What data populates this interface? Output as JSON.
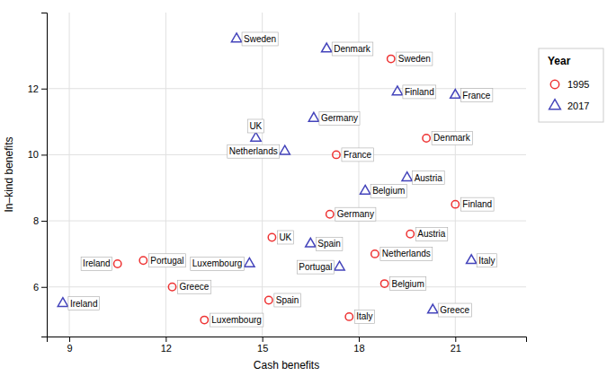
{
  "chart_data": {
    "type": "scatter",
    "xlabel": "Cash benefits",
    "ylabel": "In–kind benefits",
    "xlim": [
      8.3,
      23.2
    ],
    "ylim": [
      4.5,
      14.3
    ],
    "xticks": [
      9,
      12,
      15,
      18,
      21
    ],
    "yticks": [
      6,
      8,
      10,
      12
    ],
    "grid": true,
    "legend": "right",
    "legend_title": "Year",
    "series": [
      {
        "name": "1995",
        "color": "#EE3333",
        "marker": "circle",
        "labels": [
          "Sweden",
          "Denmark",
          "Finland",
          "France",
          "Germany",
          "Austria",
          "Netherlands",
          "Belgium",
          "UK",
          "Ireland",
          "Portugal",
          "Spain",
          "Greece",
          "Luxembourg",
          "Italy"
        ],
        "x": [
          19.0,
          20.1,
          21.0,
          17.3,
          17.1,
          19.6,
          18.5,
          18.8,
          15.3,
          10.5,
          11.3,
          15.2,
          12.2,
          13.2,
          17.7
        ],
        "values": [
          12.9,
          10.5,
          8.5,
          10.0,
          8.2,
          7.6,
          7.0,
          6.1,
          7.5,
          6.7,
          6.8,
          5.6,
          6.0,
          5.0,
          5.1
        ]
      },
      {
        "name": "2017",
        "color": "#4444BB",
        "marker": "triangle",
        "labels": [
          "Sweden",
          "Denmark",
          "Finland",
          "France",
          "Germany",
          "Austria",
          "Netherlands",
          "Belgium",
          "UK",
          "Ireland",
          "Portugal",
          "Spain",
          "Greece",
          "Luxembourg",
          "Italy"
        ],
        "x": [
          14.2,
          17.0,
          19.2,
          21.0,
          16.6,
          19.5,
          15.7,
          18.2,
          14.8,
          8.8,
          17.4,
          16.5,
          20.3,
          14.6,
          21.5
        ],
        "values": [
          13.5,
          13.2,
          11.9,
          11.8,
          11.1,
          9.3,
          10.1,
          8.9,
          10.5,
          5.5,
          6.6,
          7.3,
          5.3,
          6.7,
          6.8
        ]
      }
    ]
  }
}
